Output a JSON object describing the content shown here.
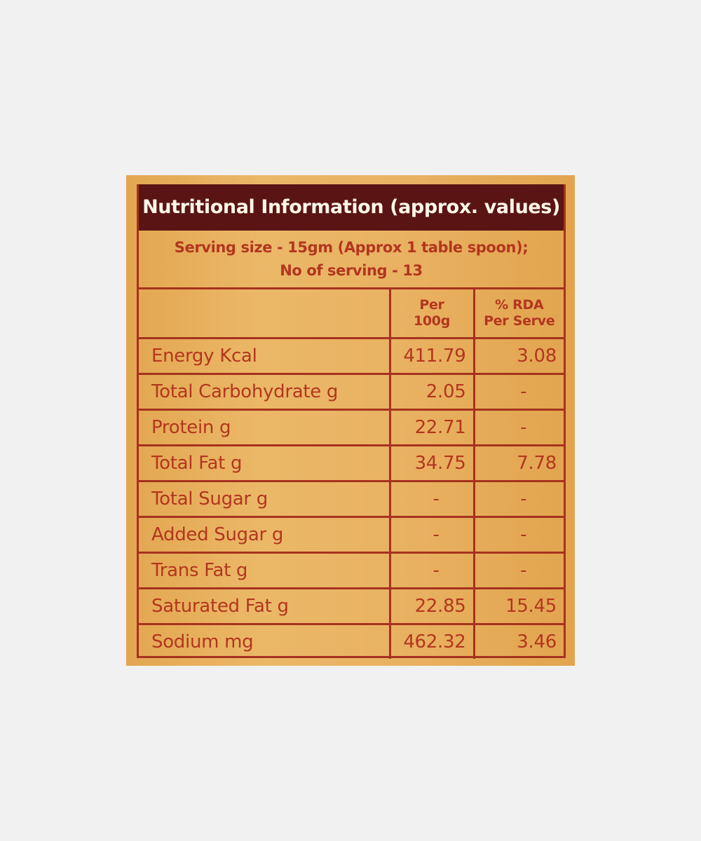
{
  "label": {
    "title": "Nutritional Information (approx. values)",
    "serving_line1": "Serving size - 15gm (Approx 1 table spoon);",
    "serving_line2": "No of serving  - 13",
    "columns": {
      "per100_line1": "Per",
      "per100_line2": "100g",
      "rda_line1": "% RDA",
      "rda_line2": "Per Serve"
    },
    "rows": [
      {
        "nutrient": "Energy  Kcal",
        "per100g": "411.79",
        "rda": "3.08"
      },
      {
        "nutrient": "Total Carbohydrate g",
        "per100g": "2.05",
        "rda": "-"
      },
      {
        "nutrient": "Protein g",
        "per100g": "22.71",
        "rda": "-"
      },
      {
        "nutrient": "Total Fat g",
        "per100g": "34.75",
        "rda": "7.78"
      },
      {
        "nutrient": "Total Sugar g",
        "per100g": "-",
        "rda": "-"
      },
      {
        "nutrient": "Added Sugar g",
        "per100g": "-",
        "rda": "-"
      },
      {
        "nutrient": "Trans Fat  g",
        "per100g": "-",
        "rda": "-"
      },
      {
        "nutrient": "Saturated Fat  g",
        "per100g": "22.85",
        "rda": "15.45"
      },
      {
        "nutrient": "Sodium  mg",
        "per100g": "462.32",
        "rda": "3.46"
      }
    ]
  },
  "colors": {
    "background": "#f1f1f1",
    "card": "#e7ad58",
    "header_bg": "#5a1414",
    "header_text": "#fff6e8",
    "ink": "#b3361f"
  }
}
